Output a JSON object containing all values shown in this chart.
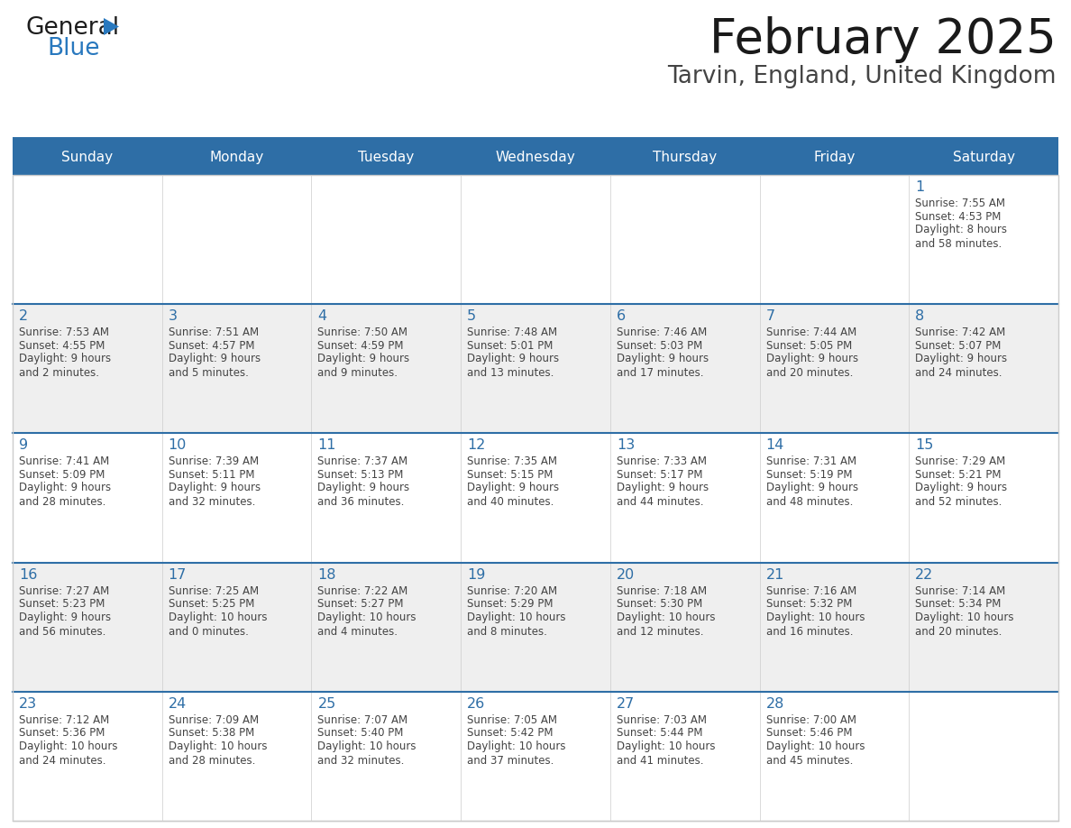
{
  "title": "February 2025",
  "subtitle": "Tarvin, England, United Kingdom",
  "days_of_week": [
    "Sunday",
    "Monday",
    "Tuesday",
    "Wednesday",
    "Thursday",
    "Friday",
    "Saturday"
  ],
  "header_bg": "#2E6EA6",
  "header_text": "#FFFFFF",
  "row_colors": [
    "#FFFFFF",
    "#EFEFEF",
    "#FFFFFF",
    "#EFEFEF",
    "#FFFFFF"
  ],
  "cell_border_color": "#CCCCCC",
  "row_separator_color": "#2E6EA6",
  "day_number_color": "#2E6EA6",
  "text_color": "#444444",
  "weeks": [
    {
      "days": [
        {
          "date": null,
          "sunrise": null,
          "sunset": null,
          "daylight": null
        },
        {
          "date": null,
          "sunrise": null,
          "sunset": null,
          "daylight": null
        },
        {
          "date": null,
          "sunrise": null,
          "sunset": null,
          "daylight": null
        },
        {
          "date": null,
          "sunrise": null,
          "sunset": null,
          "daylight": null
        },
        {
          "date": null,
          "sunrise": null,
          "sunset": null,
          "daylight": null
        },
        {
          "date": null,
          "sunrise": null,
          "sunset": null,
          "daylight": null
        },
        {
          "date": 1,
          "sunrise": "7:55 AM",
          "sunset": "4:53 PM",
          "daylight": "8 hours\nand 58 minutes."
        }
      ]
    },
    {
      "days": [
        {
          "date": 2,
          "sunrise": "7:53 AM",
          "sunset": "4:55 PM",
          "daylight": "9 hours\nand 2 minutes."
        },
        {
          "date": 3,
          "sunrise": "7:51 AM",
          "sunset": "4:57 PM",
          "daylight": "9 hours\nand 5 minutes."
        },
        {
          "date": 4,
          "sunrise": "7:50 AM",
          "sunset": "4:59 PM",
          "daylight": "9 hours\nand 9 minutes."
        },
        {
          "date": 5,
          "sunrise": "7:48 AM",
          "sunset": "5:01 PM",
          "daylight": "9 hours\nand 13 minutes."
        },
        {
          "date": 6,
          "sunrise": "7:46 AM",
          "sunset": "5:03 PM",
          "daylight": "9 hours\nand 17 minutes."
        },
        {
          "date": 7,
          "sunrise": "7:44 AM",
          "sunset": "5:05 PM",
          "daylight": "9 hours\nand 20 minutes."
        },
        {
          "date": 8,
          "sunrise": "7:42 AM",
          "sunset": "5:07 PM",
          "daylight": "9 hours\nand 24 minutes."
        }
      ]
    },
    {
      "days": [
        {
          "date": 9,
          "sunrise": "7:41 AM",
          "sunset": "5:09 PM",
          "daylight": "9 hours\nand 28 minutes."
        },
        {
          "date": 10,
          "sunrise": "7:39 AM",
          "sunset": "5:11 PM",
          "daylight": "9 hours\nand 32 minutes."
        },
        {
          "date": 11,
          "sunrise": "7:37 AM",
          "sunset": "5:13 PM",
          "daylight": "9 hours\nand 36 minutes."
        },
        {
          "date": 12,
          "sunrise": "7:35 AM",
          "sunset": "5:15 PM",
          "daylight": "9 hours\nand 40 minutes."
        },
        {
          "date": 13,
          "sunrise": "7:33 AM",
          "sunset": "5:17 PM",
          "daylight": "9 hours\nand 44 minutes."
        },
        {
          "date": 14,
          "sunrise": "7:31 AM",
          "sunset": "5:19 PM",
          "daylight": "9 hours\nand 48 minutes."
        },
        {
          "date": 15,
          "sunrise": "7:29 AM",
          "sunset": "5:21 PM",
          "daylight": "9 hours\nand 52 minutes."
        }
      ]
    },
    {
      "days": [
        {
          "date": 16,
          "sunrise": "7:27 AM",
          "sunset": "5:23 PM",
          "daylight": "9 hours\nand 56 minutes."
        },
        {
          "date": 17,
          "sunrise": "7:25 AM",
          "sunset": "5:25 PM",
          "daylight": "10 hours\nand 0 minutes."
        },
        {
          "date": 18,
          "sunrise": "7:22 AM",
          "sunset": "5:27 PM",
          "daylight": "10 hours\nand 4 minutes."
        },
        {
          "date": 19,
          "sunrise": "7:20 AM",
          "sunset": "5:29 PM",
          "daylight": "10 hours\nand 8 minutes."
        },
        {
          "date": 20,
          "sunrise": "7:18 AM",
          "sunset": "5:30 PM",
          "daylight": "10 hours\nand 12 minutes."
        },
        {
          "date": 21,
          "sunrise": "7:16 AM",
          "sunset": "5:32 PM",
          "daylight": "10 hours\nand 16 minutes."
        },
        {
          "date": 22,
          "sunrise": "7:14 AM",
          "sunset": "5:34 PM",
          "daylight": "10 hours\nand 20 minutes."
        }
      ]
    },
    {
      "days": [
        {
          "date": 23,
          "sunrise": "7:12 AM",
          "sunset": "5:36 PM",
          "daylight": "10 hours\nand 24 minutes."
        },
        {
          "date": 24,
          "sunrise": "7:09 AM",
          "sunset": "5:38 PM",
          "daylight": "10 hours\nand 28 minutes."
        },
        {
          "date": 25,
          "sunrise": "7:07 AM",
          "sunset": "5:40 PM",
          "daylight": "10 hours\nand 32 minutes."
        },
        {
          "date": 26,
          "sunrise": "7:05 AM",
          "sunset": "5:42 PM",
          "daylight": "10 hours\nand 37 minutes."
        },
        {
          "date": 27,
          "sunrise": "7:03 AM",
          "sunset": "5:44 PM",
          "daylight": "10 hours\nand 41 minutes."
        },
        {
          "date": 28,
          "sunrise": "7:00 AM",
          "sunset": "5:46 PM",
          "daylight": "10 hours\nand 45 minutes."
        },
        {
          "date": null,
          "sunrise": null,
          "sunset": null,
          "daylight": null
        }
      ]
    }
  ]
}
